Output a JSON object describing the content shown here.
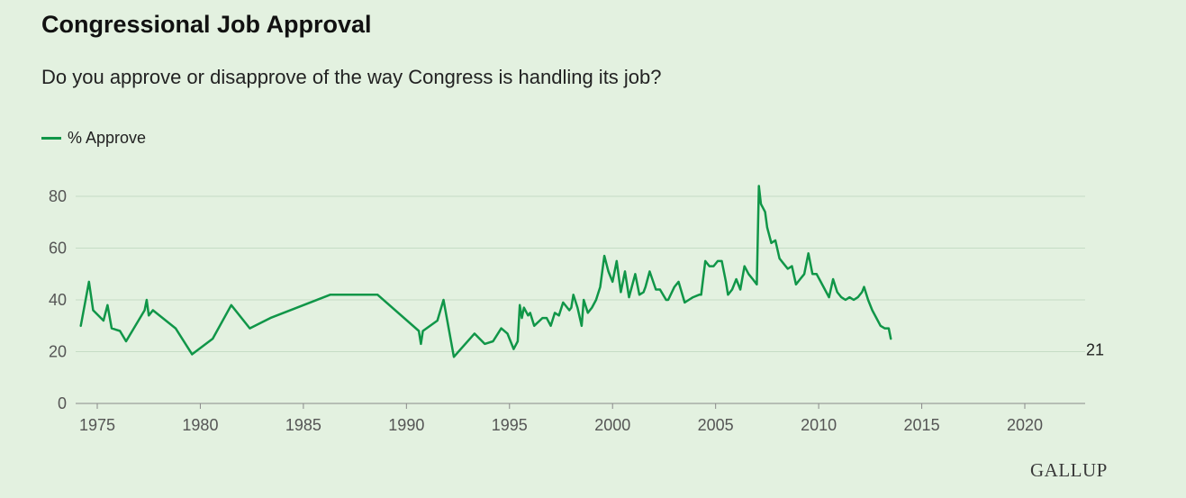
{
  "header": {
    "title": "Congressional Job Approval",
    "subtitle": "Do you approve or disapprove of the way Congress is handling its job?"
  },
  "legend": {
    "label": "% Approve"
  },
  "footer": {
    "brand": "GALLUP"
  },
  "colors": {
    "series": "#109648",
    "background": "#e3f1e0",
    "grid": "#c5dcc5",
    "axis": "#8a8a8a"
  },
  "chart_data": {
    "type": "line",
    "title": "Congressional Job Approval",
    "subtitle": "Do you approve or disapprove of the way Congress is handling its job?",
    "xlabel": "",
    "ylabel": "",
    "xlim": [
      1974,
      2023.5
    ],
    "ylim": [
      0,
      85
    ],
    "xticks": [
      1975,
      1980,
      1985,
      1990,
      1995,
      2000,
      2005,
      2010,
      2015,
      2020
    ],
    "yticks": [
      0,
      20,
      40,
      60,
      80
    ],
    "grid": "horizontal",
    "legend_position": "top-left",
    "end_label": "21",
    "series": [
      {
        "name": "% Approve",
        "points": [
          [
            1974.2,
            30
          ],
          [
            1974.6,
            47
          ],
          [
            1974.8,
            36
          ],
          [
            1975.3,
            32
          ],
          [
            1975.5,
            38
          ],
          [
            1975.7,
            29
          ],
          [
            1976.1,
            28
          ],
          [
            1976.4,
            24
          ],
          [
            1977.3,
            36
          ],
          [
            1977.4,
            40
          ],
          [
            1977.5,
            34
          ],
          [
            1977.7,
            36
          ],
          [
            1978.8,
            29
          ],
          [
            1979.6,
            19
          ],
          [
            1980.6,
            25
          ],
          [
            1981.5,
            38
          ],
          [
            1982.4,
            29
          ],
          [
            1983.4,
            33
          ],
          [
            1986.3,
            42
          ],
          [
            1988.6,
            42
          ],
          [
            1990.6,
            28
          ],
          [
            1990.7,
            23
          ],
          [
            1990.8,
            28
          ],
          [
            1991.5,
            32
          ],
          [
            1991.8,
            40
          ],
          [
            1992.3,
            18
          ],
          [
            1993.3,
            27
          ],
          [
            1993.8,
            23
          ],
          [
            1994.2,
            24
          ],
          [
            1994.6,
            29
          ],
          [
            1994.9,
            27
          ],
          [
            1995.2,
            21
          ],
          [
            1995.4,
            24
          ],
          [
            1995.5,
            38
          ],
          [
            1995.6,
            33
          ],
          [
            1995.7,
            37
          ],
          [
            1995.9,
            34
          ],
          [
            1996.0,
            35
          ],
          [
            1996.2,
            30
          ],
          [
            1996.6,
            33
          ],
          [
            1996.8,
            33
          ],
          [
            1997.0,
            30
          ],
          [
            1997.2,
            35
          ],
          [
            1997.4,
            34
          ],
          [
            1997.6,
            39
          ],
          [
            1997.9,
            36
          ],
          [
            1998.0,
            37
          ],
          [
            1998.1,
            42
          ],
          [
            1998.3,
            37
          ],
          [
            1998.5,
            30
          ],
          [
            1998.6,
            40
          ],
          [
            1998.8,
            35
          ],
          [
            1999.0,
            37
          ],
          [
            1999.2,
            40
          ],
          [
            1999.4,
            45
          ],
          [
            1999.6,
            57
          ],
          [
            1999.8,
            51
          ],
          [
            2000.0,
            47
          ],
          [
            2000.2,
            55
          ],
          [
            2000.4,
            43
          ],
          [
            2000.6,
            51
          ],
          [
            2000.8,
            41
          ],
          [
            2000.9,
            44
          ],
          [
            2001.1,
            50
          ],
          [
            2001.3,
            42
          ],
          [
            2001.5,
            43
          ],
          [
            2001.6,
            45
          ],
          [
            2001.7,
            48
          ],
          [
            2001.8,
            51
          ],
          [
            2002.1,
            44
          ],
          [
            2002.3,
            44
          ],
          [
            2002.6,
            40
          ],
          [
            2002.7,
            40
          ],
          [
            2003.0,
            45
          ],
          [
            2003.2,
            47
          ],
          [
            2003.5,
            39
          ],
          [
            2003.7,
            40
          ],
          [
            2003.9,
            41
          ],
          [
            2004.2,
            42
          ],
          [
            2004.3,
            42
          ],
          [
            2004.5,
            55
          ],
          [
            2004.7,
            53
          ],
          [
            2004.9,
            53
          ],
          [
            2005.1,
            55
          ],
          [
            2005.3,
            55
          ],
          [
            2005.5,
            47
          ],
          [
            2005.6,
            42
          ],
          [
            2005.8,
            44
          ],
          [
            2006.0,
            48
          ],
          [
            2006.2,
            44
          ],
          [
            2006.4,
            53
          ],
          [
            2006.6,
            50
          ],
          [
            2006.8,
            48
          ],
          [
            2007.0,
            46
          ],
          [
            2007.1,
            84
          ],
          [
            2007.2,
            77
          ],
          [
            2007.4,
            74
          ],
          [
            2007.5,
            68
          ],
          [
            2007.7,
            62
          ],
          [
            2007.9,
            63
          ],
          [
            2008.1,
            56
          ],
          [
            2008.3,
            54
          ],
          [
            2008.5,
            52
          ],
          [
            2008.7,
            53
          ],
          [
            2008.9,
            46
          ],
          [
            2009.1,
            48
          ],
          [
            2009.3,
            50
          ],
          [
            2009.5,
            58
          ],
          [
            2009.7,
            50
          ],
          [
            2009.9,
            50
          ],
          [
            2010.1,
            47
          ],
          [
            2010.3,
            44
          ],
          [
            2010.5,
            41
          ],
          [
            2010.7,
            48
          ],
          [
            2010.9,
            43
          ],
          [
            2011.1,
            41
          ],
          [
            2011.3,
            40
          ],
          [
            2011.5,
            41
          ],
          [
            2011.7,
            40
          ],
          [
            2011.9,
            41
          ],
          [
            2012.1,
            43
          ],
          [
            2012.2,
            45
          ],
          [
            2012.4,
            40
          ],
          [
            2012.6,
            36
          ],
          [
            2012.8,
            33
          ],
          [
            2013.0,
            30
          ],
          [
            2013.2,
            29
          ],
          [
            2013.4,
            29
          ],
          [
            2013.5,
            25
          ]
        ]
      }
    ]
  }
}
